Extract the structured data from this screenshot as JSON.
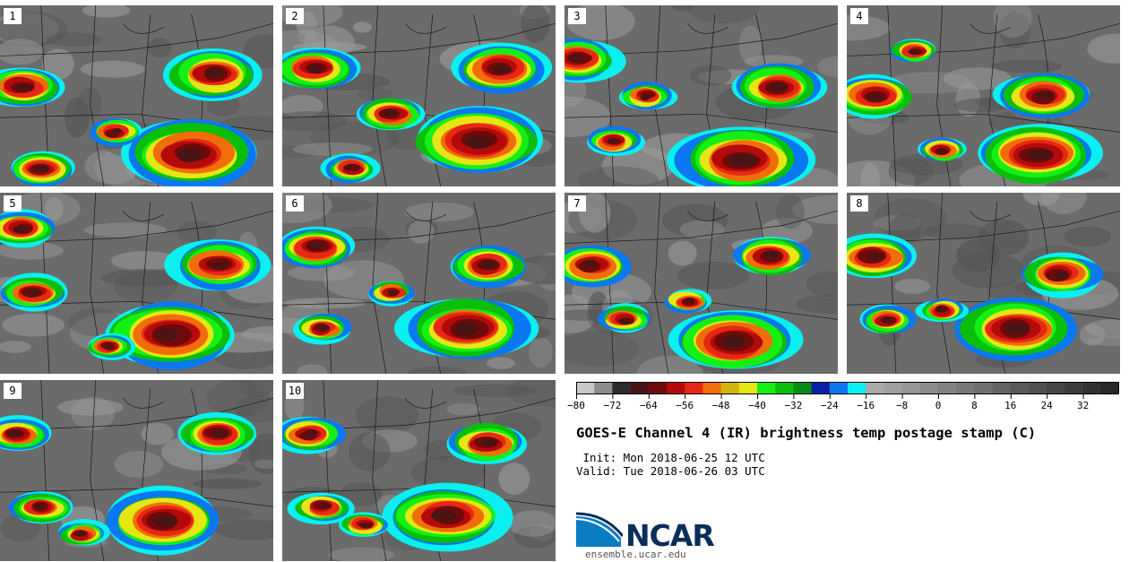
{
  "panels": [
    {
      "label": "1"
    },
    {
      "label": "2"
    },
    {
      "label": "3"
    },
    {
      "label": "4"
    },
    {
      "label": "5"
    },
    {
      "label": "6"
    },
    {
      "label": "7"
    },
    {
      "label": "8"
    },
    {
      "label": "9"
    },
    {
      "label": "10"
    }
  ],
  "colorbar": {
    "colors": [
      "#c8c8c8",
      "#8c8c8c",
      "#2c2c2c",
      "#4a1414",
      "#6e0a0a",
      "#b40a0a",
      "#e62814",
      "#f06e0a",
      "#d2b40a",
      "#e6e614",
      "#14f014",
      "#0abe0a",
      "#0a8c14",
      "#0a1eaa",
      "#0a78f0",
      "#0af0f0",
      "#aaaaaa",
      "#a0a0a0",
      "#969696",
      "#8c8c8c",
      "#828282",
      "#787878",
      "#6e6e6e",
      "#646464",
      "#5a5a5a",
      "#505050",
      "#464646",
      "#3c3c3c",
      "#323232",
      "#282828"
    ],
    "tick_labels": [
      "−80",
      "−72",
      "−64",
      "−56",
      "−48",
      "−40",
      "−32",
      "−24",
      "−16",
      "−8",
      "0",
      "8",
      "16",
      "24",
      "32"
    ]
  },
  "title": "GOES-E Channel 4 (IR) brightness temp postage stamp (C)",
  "init": " Init: Mon 2018-06-25 12 UTC",
  "valid": "Valid: Tue 2018-06-26 03 UTC",
  "logo": {
    "text": "NCAR",
    "color": "#0a2d5a"
  },
  "url": "ensemble.ucar.edu"
}
